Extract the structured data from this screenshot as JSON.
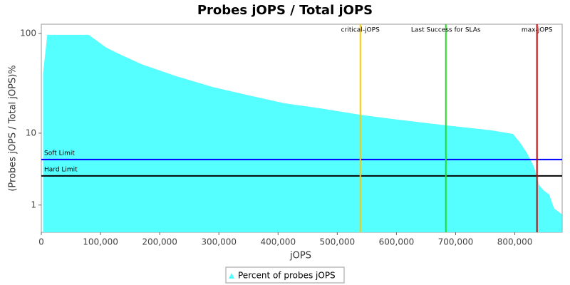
{
  "chart_data": {
    "type": "area",
    "title": "Probes jOPS / Total jOPS",
    "x_label": "jOPS",
    "y_label": "(Probes jOPS / Total jOPS)%",
    "y_scale": "switched-log",
    "x": [
      3000,
      10000,
      80000,
      110000,
      135000,
      170000,
      230000,
      290000,
      350000,
      410000,
      470000,
      539000,
      592000,
      683000,
      760000,
      797000,
      808600,
      820600,
      832700,
      841000,
      849500,
      858000,
      866400,
      879600
    ],
    "series": [
      {
        "name": "Percent of probes jOPS",
        "color": "#55ffff",
        "values": [
          40,
          97,
          97,
          72,
          61,
          49,
          37,
          29,
          24,
          20,
          17.8,
          15.3,
          13.9,
          12,
          10.7,
          8.7,
          5.6,
          3.93,
          2.61,
          1.64,
          1.42,
          1.3,
          0.92,
          0.8
        ]
      }
    ],
    "xlim": [
      0,
      880000
    ],
    "xticks": [
      0,
      {
        "value": 100000,
        "label": "100,000"
      },
      {
        "value": 200000,
        "label": "200,000"
      },
      {
        "value": 300000,
        "label": "300,000"
      },
      {
        "value": 400000,
        "label": "400,000"
      },
      {
        "value": 500000,
        "label": "500,000"
      },
      {
        "value": 600000,
        "label": "600,000"
      },
      {
        "value": 700000,
        "label": "700,000"
      },
      {
        "value": 800000,
        "label": "800,000"
      }
    ],
    "ylim": [
      0.52,
      124
    ],
    "yticks": [
      1,
      10,
      100
    ],
    "vertical_markers": [
      {
        "label": "critical-jOPS",
        "x": 539000,
        "color": "#ffc800"
      },
      {
        "label": "Last Success for SLAs",
        "x": 683500,
        "color": "#22dd22"
      },
      {
        "label": "max-jOPS",
        "x": 837500,
        "color": "#cc0000"
      }
    ],
    "horizontal_markers": [
      {
        "label": "Soft Limit",
        "y": 3.25,
        "color": "#0000ff"
      },
      {
        "label": "Hard Limit",
        "y": 2.08,
        "color": "#000000"
      }
    ]
  }
}
